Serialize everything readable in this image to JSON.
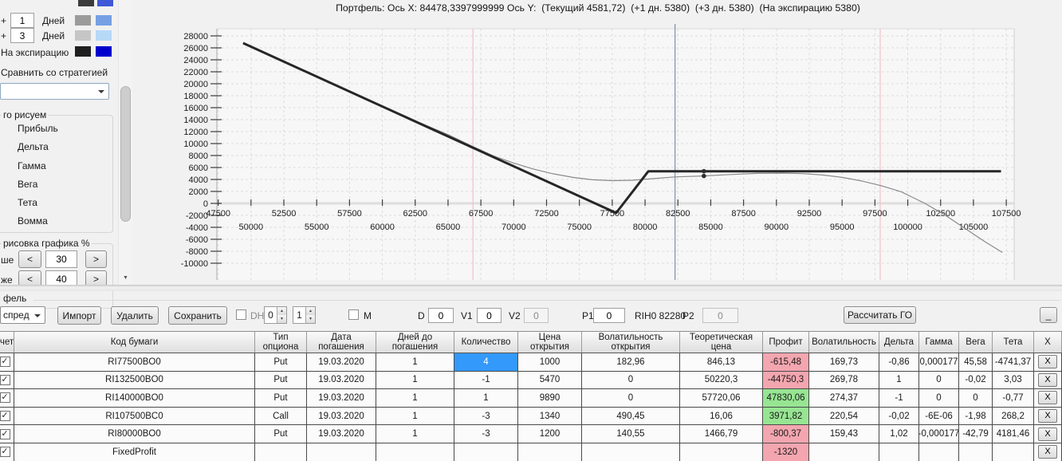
{
  "sidebar": {
    "partial_legend": {
      "swatch1": "#3c3c3c",
      "swatch2": "#3e58d8"
    },
    "day_rows": [
      {
        "plus": "+",
        "value": "1",
        "label": "Дней",
        "swatch1": "#9b9b9b",
        "swatch2": "#76a0e3"
      },
      {
        "plus": "+",
        "value": "3",
        "label": "Дней",
        "swatch1": "#c6c6c6",
        "swatch2": "#b7d9f8"
      }
    ],
    "expiry": {
      "label": "На экспирацию",
      "swatch1": "#1f1f1f",
      "swatch2": "#0000cc"
    },
    "compare_label": "Сравнить со стратегией",
    "combo_value": "",
    "draw_group": {
      "label": "го рисуем",
      "items": [
        "Прибыль",
        "Дельта",
        "Гамма",
        "Вега",
        "Тета",
        "Вомма"
      ]
    },
    "render_group": {
      "label": "рисовка графика %",
      "above_label": "ше",
      "above_value": "30",
      "below_label": "же",
      "below_value": "40",
      "prev": "<",
      "next": ">"
    }
  },
  "chart_data": {
    "type": "line",
    "title": "Портфель: Ось X: 84478,3397999999 Ось Y:  (Текущий 4581,72)  (+1 дн. 5380)  (+3 дн. 5380)  (На экспирацию 5380)",
    "xlabel": "",
    "ylabel": "",
    "xlim": [
      47400,
      108100
    ],
    "ylim": [
      -10000,
      28000
    ],
    "grid": {
      "x_start": 47500,
      "x_end": 107500,
      "x_step": 2500,
      "y_start": -10000,
      "y_end": 28000,
      "y_step": 2000
    },
    "y_ticks": [
      "28000",
      "26000",
      "24000",
      "22000",
      "20000",
      "18000",
      "16000",
      "14000",
      "12000",
      "10000",
      "8000",
      "6000",
      "4000",
      "2000",
      "0",
      "-2000",
      "-4000",
      "-6000",
      "-8000",
      "-10000"
    ],
    "x_ticks_upper": [
      "47500",
      "52500",
      "57500",
      "62500",
      "67500",
      "72500",
      "77500",
      "82500",
      "87500",
      "92500",
      "97500",
      "102500",
      "107500"
    ],
    "x_ticks_lower": [
      "50000",
      "55000",
      "60000",
      "65000",
      "70000",
      "75000",
      "80000",
      "85000",
      "90000",
      "95000",
      "100000",
      "105000"
    ],
    "series": [
      {
        "name": "Текущий",
        "color": "#8a8a8a",
        "width": 1.2,
        "points": [
          [
            49400,
            26800
          ],
          [
            52500,
            23700
          ],
          [
            55000,
            21200
          ],
          [
            57500,
            18700
          ],
          [
            60000,
            16200
          ],
          [
            62500,
            13800
          ],
          [
            65000,
            11500
          ],
          [
            66900,
            9500
          ],
          [
            68500,
            7900
          ],
          [
            70000,
            6750
          ],
          [
            71500,
            5750
          ],
          [
            73000,
            4950
          ],
          [
            74500,
            4350
          ],
          [
            76000,
            3950
          ],
          [
            77500,
            3800
          ],
          [
            79000,
            3870
          ],
          [
            80500,
            4120
          ],
          [
            82280,
            4430
          ],
          [
            84478,
            4582
          ],
          [
            86500,
            4830
          ],
          [
            88500,
            5010
          ],
          [
            90500,
            5060
          ],
          [
            92000,
            4980
          ],
          [
            93500,
            4740
          ],
          [
            95000,
            4340
          ],
          [
            96500,
            3740
          ],
          [
            98000,
            2940
          ],
          [
            99500,
            1940
          ],
          [
            101300,
            0
          ],
          [
            102800,
            -1900
          ],
          [
            104300,
            -4100
          ],
          [
            105800,
            -6300
          ],
          [
            107200,
            -8200
          ]
        ]
      },
      {
        "name": "На экспирацию",
        "color": "#262626",
        "width": 3,
        "points": [
          [
            49400,
            26800
          ],
          [
            77800,
            -1600
          ],
          [
            80250,
            5380
          ],
          [
            107100,
            5380
          ]
        ]
      }
    ],
    "markers": {
      "cursor_x": 84478,
      "cursor_points": [
        [
          84478,
          5380
        ],
        [
          84478,
          4582
        ]
      ],
      "price_line": {
        "x": 82280,
        "color": "#8b99b5",
        "label": "RIH0 82280"
      },
      "sigma_lines": [
        {
          "x": 66900
        },
        {
          "x": 97900
        }
      ],
      "sigma_color": "#f2c4cb"
    }
  },
  "portfolio_group_label": "фель",
  "toolbar": {
    "combo_value": "спред",
    "import": "Импорт",
    "delete": "Удалить",
    "save": "Сохранить",
    "dh_label": "DH",
    "spin1": "0",
    "spin2": "1",
    "m_label": "М",
    "d_label": "D",
    "d_value": "0",
    "v1_label": "V1",
    "v1_value": "0",
    "v2_label": "V2",
    "v2_value": "0",
    "p1_label": "P1",
    "p1_value": "0",
    "instrument": "RIH0 82280",
    "p2_label": "P2",
    "p2_value": "0",
    "calc_go": "Рассчитать ГО",
    "minimize": "_"
  },
  "table": {
    "columns": [
      "чет",
      "Код бумаги",
      "Тип\nопциона",
      "Дата\nпогашения",
      "Дней до\nпогашения",
      "Количество",
      "Цена\nоткрытия",
      "Волатильность\nоткрытия",
      "Теоретическая\nцена",
      "Профит",
      "Волатильность",
      "Дельта",
      "Гамма",
      "Вега",
      "Тета",
      "X"
    ],
    "delete_label": "X",
    "colors": {
      "profit_loss": "#f3a6af",
      "profit_gain": "#97e593",
      "qty_selected": "#3399fb"
    },
    "rows": [
      {
        "checked": true,
        "code": "RI77500BO0",
        "type": "Put",
        "date": "19.03.2020",
        "days": "1",
        "qty": "4",
        "qty_selected": true,
        "open_price": "1000",
        "open_vol": "182,96",
        "theor": "846,13",
        "profit": "-615,48",
        "profit_state": "loss",
        "vol": "169,73",
        "delta": "-0,86",
        "gamma": "0,000177",
        "vega": "45,58",
        "theta": "-4741,37"
      },
      {
        "checked": true,
        "code": "RI132500BO0",
        "type": "Put",
        "date": "19.03.2020",
        "days": "1",
        "qty": "-1",
        "open_price": "5470",
        "open_vol": "0",
        "theor": "50220,3",
        "profit": "-44750,3",
        "profit_state": "loss",
        "vol": "269,78",
        "delta": "1",
        "gamma": "0",
        "vega": "-0,02",
        "theta": "3,03"
      },
      {
        "checked": true,
        "code": "RI140000BO0",
        "type": "Put",
        "date": "19.03.2020",
        "days": "1",
        "qty": "1",
        "open_price": "9890",
        "open_vol": "0",
        "theor": "57720,06",
        "profit": "47830,06",
        "profit_state": "gain",
        "vol": "274,37",
        "delta": "-1",
        "gamma": "0",
        "vega": "0",
        "theta": "-0,77"
      },
      {
        "checked": true,
        "code": "RI107500BC0",
        "type": "Call",
        "date": "19.03.2020",
        "days": "1",
        "qty": "-3",
        "open_price": "1340",
        "open_vol": "490,45",
        "theor": "16,06",
        "profit": "3971,82",
        "profit_state": "gain",
        "vol": "220,54",
        "delta": "-0,02",
        "gamma": "-6E-06",
        "vega": "-1,98",
        "theta": "268,2"
      },
      {
        "checked": true,
        "code": "RI80000BO0",
        "type": "Put",
        "date": "19.03.2020",
        "days": "1",
        "qty": "-3",
        "open_price": "1200",
        "open_vol": "140,55",
        "theor": "1466,79",
        "profit": "-800,37",
        "profit_state": "loss",
        "vol": "159,43",
        "delta": "1,02",
        "gamma": "-0,000177",
        "vega": "-42,79",
        "theta": "4181,46"
      },
      {
        "checked": true,
        "code": "FixedProfit",
        "type": "",
        "date": "",
        "days": "",
        "qty": "",
        "open_price": "",
        "open_vol": "",
        "theor": "",
        "profit": "-1320",
        "profit_state": "loss",
        "vol": "",
        "delta": "",
        "gamma": "",
        "vega": "",
        "theta": ""
      }
    ]
  }
}
